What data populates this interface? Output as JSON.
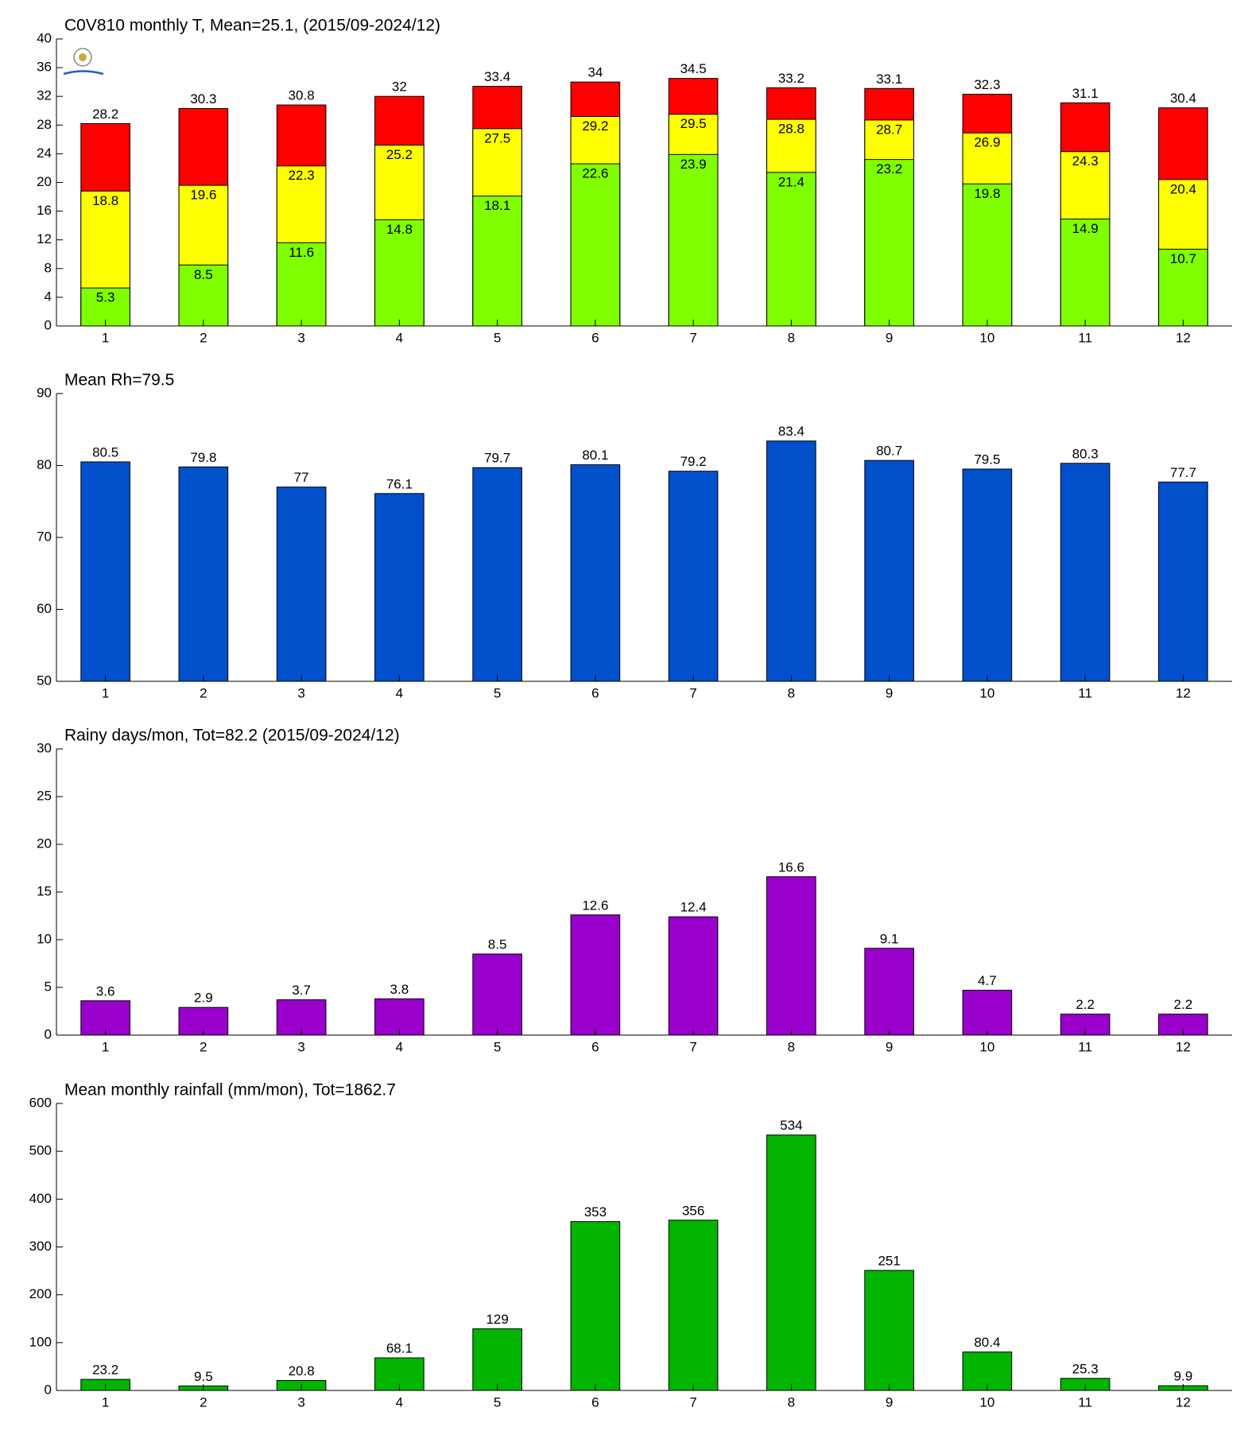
{
  "chart_data": [
    {
      "type": "bar",
      "title": "C0V810 monthly T, Mean=25.1, (2015/09-2024/12)",
      "categories": [
        "1",
        "2",
        "3",
        "4",
        "5",
        "6",
        "7",
        "8",
        "9",
        "10",
        "11",
        "12"
      ],
      "series": [
        {
          "color": "#ff0000",
          "values": [
            28.2,
            30.3,
            30.8,
            32,
            33.4,
            34,
            34.5,
            33.2,
            33.1,
            32.3,
            31.1,
            30.4
          ]
        },
        {
          "color": "#ffff00",
          "values": [
            18.8,
            19.6,
            22.3,
            25.2,
            27.5,
            29.2,
            29.5,
            28.8,
            28.7,
            26.9,
            24.3,
            20.4
          ]
        },
        {
          "color": "#80ff00",
          "values": [
            5.3,
            8.5,
            11.6,
            14.8,
            18.1,
            22.6,
            23.9,
            21.4,
            23.2,
            19.8,
            14.9,
            10.7
          ]
        }
      ],
      "ylim": [
        0,
        40
      ],
      "yticks": [
        0,
        4,
        8,
        12,
        16,
        20,
        24,
        28,
        32,
        36,
        40
      ]
    },
    {
      "type": "bar",
      "title": "Mean Rh=79.5",
      "categories": [
        "1",
        "2",
        "3",
        "4",
        "5",
        "6",
        "7",
        "8",
        "9",
        "10",
        "11",
        "12"
      ],
      "values": [
        80.5,
        79.8,
        77,
        76.1,
        79.7,
        80.1,
        79.2,
        83.4,
        80.7,
        79.5,
        80.3,
        77.7
      ],
      "color": "#0050cc",
      "ylim": [
        50,
        90
      ],
      "yticks": [
        50,
        60,
        70,
        80,
        90
      ]
    },
    {
      "type": "bar",
      "title": "Rainy days/mon, Tot=82.2 (2015/09-2024/12)",
      "categories": [
        "1",
        "2",
        "3",
        "4",
        "5",
        "6",
        "7",
        "8",
        "9",
        "10",
        "11",
        "12"
      ],
      "values": [
        3.6,
        2.9,
        3.7,
        3.8,
        8.5,
        12.6,
        12.4,
        16.6,
        9.1,
        4.7,
        2.2,
        2.2
      ],
      "color": "#9900cc",
      "ylim": [
        0,
        30
      ],
      "yticks": [
        0,
        5,
        10,
        15,
        20,
        25,
        30
      ]
    },
    {
      "type": "bar",
      "title": "Mean monthly rainfall (mm/mon), Tot=1862.7",
      "categories": [
        "1",
        "2",
        "3",
        "4",
        "5",
        "6",
        "7",
        "8",
        "9",
        "10",
        "11",
        "12"
      ],
      "values": [
        23.2,
        9.5,
        20.8,
        68.1,
        129,
        353,
        356,
        534,
        251,
        80.4,
        25.3,
        9.9
      ],
      "color": "#00b400",
      "ylim": [
        0,
        600
      ],
      "yticks": [
        0,
        100,
        200,
        300,
        400,
        500,
        600
      ]
    }
  ]
}
